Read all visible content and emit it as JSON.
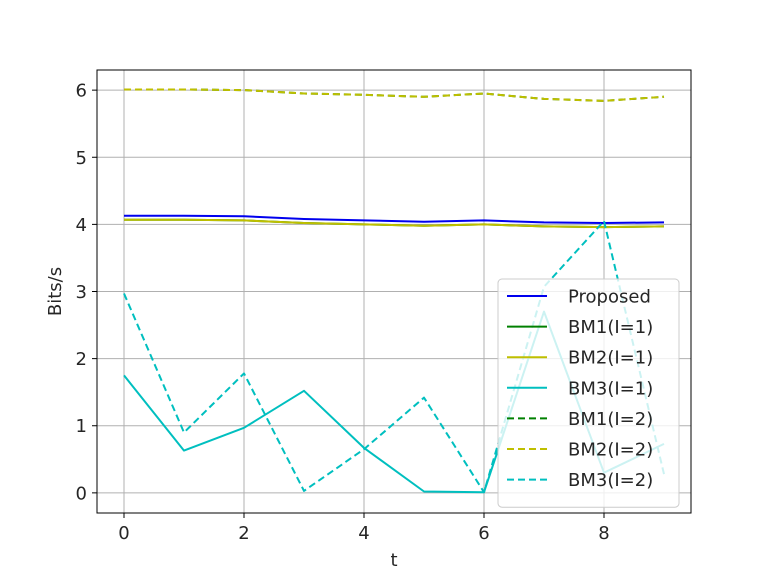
{
  "chart_data": {
    "type": "line",
    "title": "",
    "xlabel": "t",
    "ylabel": "Bits/s",
    "xlim": [
      -0.45,
      9.45
    ],
    "ylim": [
      -0.3,
      6.3
    ],
    "xticks": [
      0,
      2,
      4,
      6,
      8
    ],
    "yticks": [
      0,
      1,
      2,
      3,
      4,
      5,
      6
    ],
    "grid": true,
    "legend_position": "lower-right",
    "x": [
      0,
      1,
      2,
      3,
      4,
      5,
      6,
      7,
      8,
      9
    ],
    "series": [
      {
        "name": "Proposed",
        "color": "#0000ee",
        "dash": "solid",
        "values": [
          4.13,
          4.13,
          4.12,
          4.08,
          4.06,
          4.04,
          4.06,
          4.03,
          4.02,
          4.03
        ]
      },
      {
        "name": "BM1(I=1)",
        "color": "#008000",
        "dash": "solid",
        "values": [
          4.07,
          4.07,
          4.06,
          4.02,
          4.0,
          3.98,
          4.0,
          3.97,
          3.96,
          3.97
        ]
      },
      {
        "name": "BM2(I=1)",
        "color": "#bfbf00",
        "dash": "solid",
        "values": [
          4.07,
          4.07,
          4.06,
          4.02,
          4.0,
          3.98,
          4.0,
          3.97,
          3.96,
          3.97
        ]
      },
      {
        "name": "BM3(I=1)",
        "color": "#00bfbf",
        "dash": "solid",
        "values": [
          1.75,
          0.63,
          0.97,
          1.52,
          0.67,
          0.02,
          0.01,
          2.7,
          0.3,
          0.73
        ]
      },
      {
        "name": "BM1(I=2)",
        "color": "#008000",
        "dash": "dashed",
        "values": [
          6.01,
          6.01,
          6.0,
          5.95,
          5.93,
          5.9,
          5.95,
          5.87,
          5.84,
          5.9
        ]
      },
      {
        "name": "BM2(I=2)",
        "color": "#bfbf00",
        "dash": "dashed",
        "values": [
          6.01,
          6.01,
          6.0,
          5.95,
          5.93,
          5.9,
          5.95,
          5.87,
          5.84,
          5.9
        ]
      },
      {
        "name": "BM3(I=2)",
        "color": "#00bfbf",
        "dash": "dashed",
        "values": [
          2.97,
          0.9,
          1.78,
          0.03,
          0.65,
          1.42,
          0.01,
          3.07,
          4.05,
          0.28
        ]
      }
    ]
  }
}
